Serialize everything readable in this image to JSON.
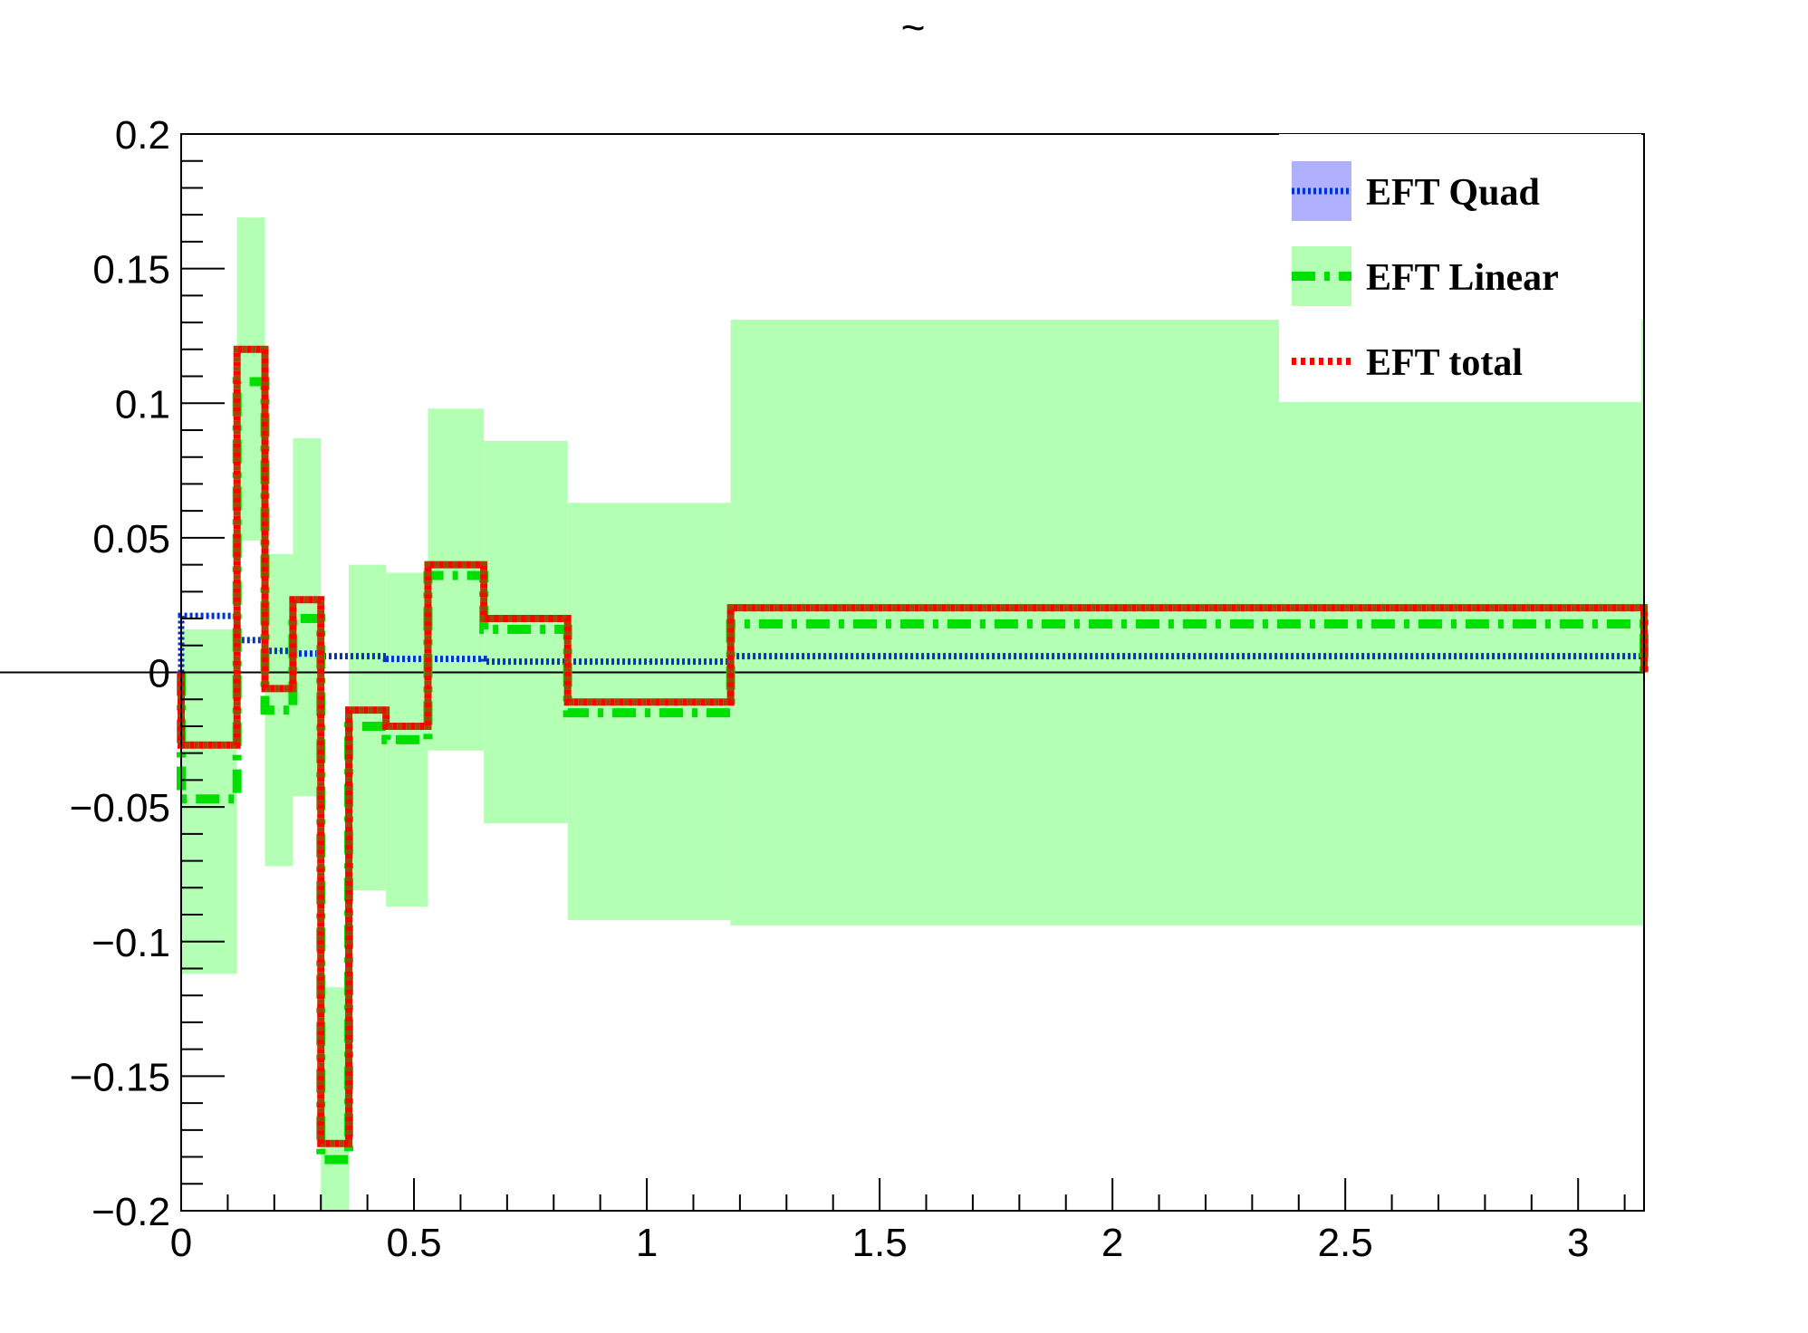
{
  "chart_data": {
    "type": "line",
    "title": "~",
    "xlabel": "",
    "ylabel": "",
    "xlim": [
      0,
      3.1416
    ],
    "ylim": [
      -0.2,
      0.2
    ],
    "x_ticks": [
      "0",
      "0.5",
      "1",
      "1.5",
      "2",
      "2.5",
      "3"
    ],
    "y_ticks": [
      "0.2",
      "0.15",
      "0.1",
      "0.05",
      "0",
      "−0.05",
      "−0.1",
      "−0.15",
      "−0.2"
    ],
    "bin_edges": [
      0,
      0.12,
      0.18,
      0.24,
      0.3,
      0.36,
      0.44,
      0.53,
      0.65,
      0.83,
      1.18,
      3.1416
    ],
    "band": {
      "color": "#b3ffb3",
      "low": [
        -0.112,
        0.049,
        -0.072,
        -0.046,
        -0.2,
        -0.081,
        -0.087,
        -0.029,
        -0.056,
        -0.092,
        -0.094
      ],
      "high": [
        0.016,
        0.169,
        0.044,
        0.087,
        -0.117,
        0.04,
        0.037,
        0.098,
        0.086,
        0.063,
        0.131
      ]
    },
    "series": [
      {
        "name": "EFT Quad",
        "color": "#0033cc",
        "values": [
          0.021,
          0.012,
          0.008,
          0.007,
          0.006,
          0.006,
          0.005,
          0.005,
          0.004,
          0.004,
          0.006
        ]
      },
      {
        "name": "EFT Linear",
        "color": "#00e000",
        "values": [
          -0.047,
          0.108,
          -0.014,
          0.02,
          -0.181,
          -0.02,
          -0.025,
          0.036,
          0.016,
          -0.015,
          0.018
        ]
      },
      {
        "name": "EFT total",
        "color": "#ff0000",
        "values": [
          -0.027,
          0.12,
          -0.006,
          0.027,
          -0.175,
          -0.014,
          -0.02,
          0.04,
          0.02,
          -0.011,
          0.024
        ]
      }
    ],
    "legend": {
      "position": "top-right",
      "items": [
        {
          "label": "EFT Quad",
          "swatch_fill": "#b0b0ff",
          "line_color": "#0033cc"
        },
        {
          "label": "EFT Linear",
          "swatch_fill": "#b3ffb3",
          "line_color": "#00e000"
        },
        {
          "label": "EFT total",
          "swatch_fill": "none",
          "line_color": "#ff0000"
        }
      ]
    }
  }
}
